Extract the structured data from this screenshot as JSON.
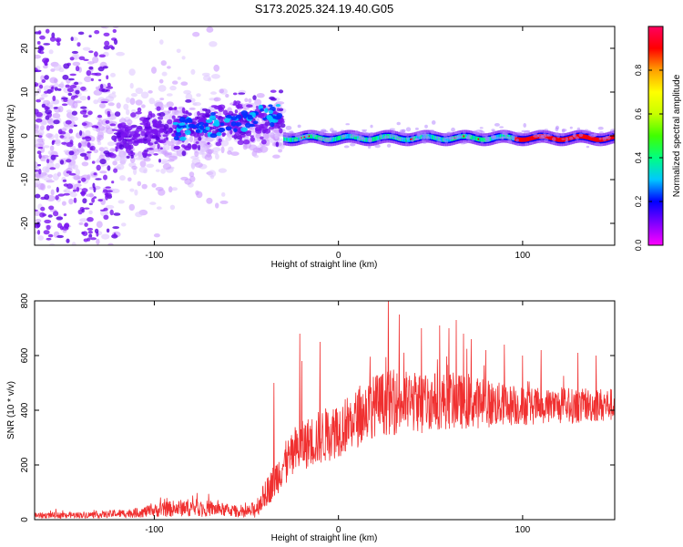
{
  "title": "S173.2025.324.19.40.G05",
  "chart_data": [
    {
      "type": "heatmap",
      "xlabel": "Height of straight line (km)",
      "ylabel": "Frequency (Hz)",
      "xlim": [
        -165,
        150
      ],
      "ylim": [
        -25,
        25
      ],
      "x_ticks": [
        -100,
        0,
        100
      ],
      "y_ticks": [
        -20,
        -10,
        0,
        10,
        20
      ],
      "colorbar": {
        "label": "Normalized spectral amplitude",
        "range": [
          0,
          1
        ],
        "ticks": [
          0.0,
          0.2,
          0.4,
          0.6,
          0.8
        ],
        "colors": [
          "#ff00ff",
          "#8000ff",
          "#0000ff",
          "#00c8ff",
          "#00ff80",
          "#40ff00",
          "#c8ff00",
          "#ffff00",
          "#ffa000",
          "#ff0000",
          "#ff0060"
        ]
      },
      "features": {
        "scatter_region_km": [
          -165,
          -30
        ],
        "scatter_freq_spread_hz": [
          -25,
          25
        ],
        "line_region_km": [
          -30,
          150
        ],
        "line_center_freq_hz": [
          0,
          -1
        ]
      }
    },
    {
      "type": "line",
      "xlabel": "Height of straight line (km)",
      "ylabel": "SNR (10 * v/v)",
      "xlim": [
        -165,
        150
      ],
      "ylim": [
        0,
        800
      ],
      "x_ticks": [
        -100,
        0,
        100
      ],
      "y_ticks": [
        0,
        200,
        400,
        600,
        800
      ],
      "color": "#f03030",
      "envelope": {
        "x": [
          -165,
          -130,
          -110,
          -90,
          -80,
          -60,
          -50,
          -45,
          -40,
          -35,
          -30,
          -25,
          -20,
          -10,
          0,
          10,
          20,
          30,
          40,
          50,
          60,
          70,
          80,
          90,
          100,
          110,
          120,
          130,
          140,
          150
        ],
        "base": [
          15,
          18,
          25,
          40,
          45,
          35,
          25,
          40,
          90,
          140,
          200,
          230,
          270,
          300,
          330,
          370,
          420,
          430,
          430,
          435,
          435,
          430,
          425,
          420,
          415,
          415,
          415,
          415,
          420,
          420
        ],
        "amp": [
          18,
          20,
          30,
          50,
          55,
          40,
          30,
          60,
          80,
          110,
          130,
          140,
          150,
          170,
          170,
          180,
          190,
          200,
          190,
          180,
          175,
          165,
          150,
          130,
          120,
          110,
          110,
          105,
          105,
          100
        ]
      },
      "peaks": [
        [
          -21,
          680
        ],
        [
          -20,
          580
        ],
        [
          -35,
          500
        ],
        [
          -10,
          650
        ],
        [
          27,
          830
        ],
        [
          33,
          750
        ],
        [
          45,
          700
        ],
        [
          55,
          710
        ],
        [
          60,
          700
        ],
        [
          64,
          730
        ],
        [
          68,
          680
        ],
        [
          72,
          660
        ],
        [
          80,
          620
        ],
        [
          90,
          640
        ],
        [
          100,
          600
        ],
        [
          110,
          620
        ],
        [
          130,
          610
        ],
        [
          140,
          600
        ]
      ]
    }
  ]
}
